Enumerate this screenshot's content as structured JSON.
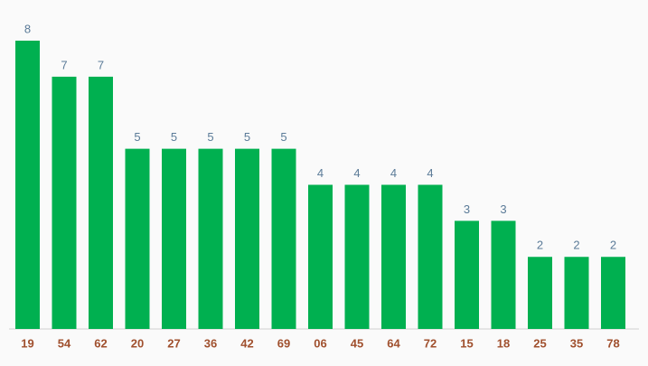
{
  "chart_data": {
    "type": "bar",
    "categories": [
      "19",
      "54",
      "62",
      "20",
      "27",
      "36",
      "42",
      "69",
      "06",
      "45",
      "64",
      "72",
      "15",
      "18",
      "25",
      "35",
      "78"
    ],
    "values": [
      8,
      7,
      7,
      5,
      5,
      5,
      5,
      5,
      4,
      4,
      4,
      4,
      3,
      3,
      2,
      2,
      2
    ],
    "color": "#00b050"
  }
}
